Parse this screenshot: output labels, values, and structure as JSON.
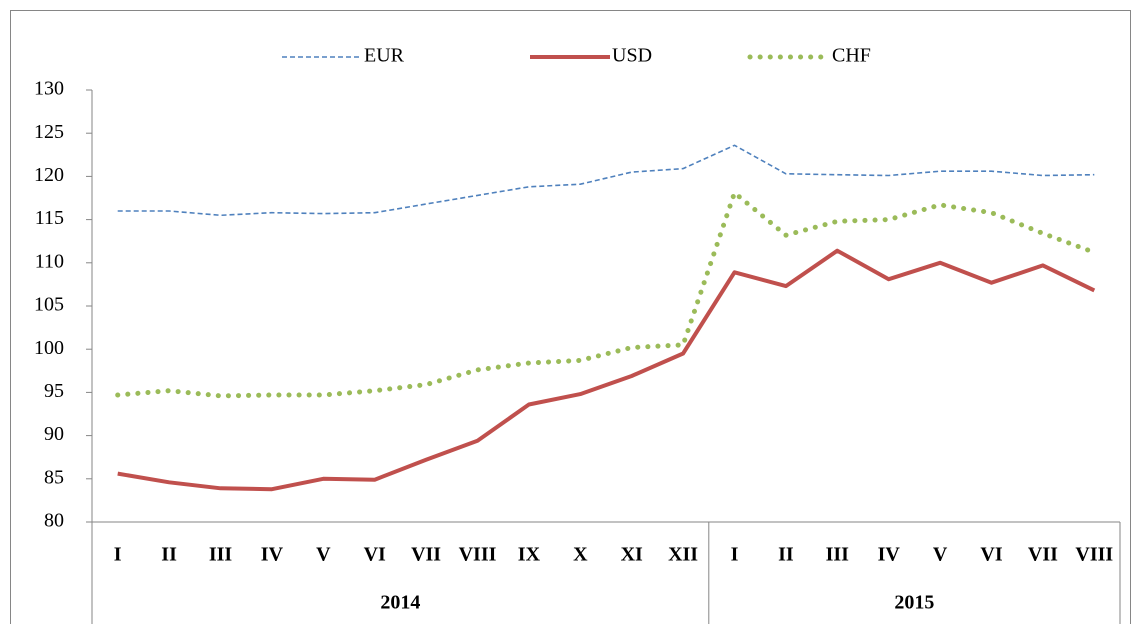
{
  "chart_data": {
    "type": "line",
    "groups": [
      {
        "label": "2014",
        "categories": [
          "I",
          "II",
          "III",
          "IV",
          "V",
          "VI",
          "VII",
          "VIII",
          "IX",
          "X",
          "XI",
          "XII"
        ]
      },
      {
        "label": "2015",
        "categories": [
          "I",
          "II",
          "III",
          "IV",
          "V",
          "VI",
          "VII",
          "VIII"
        ]
      }
    ],
    "series": [
      {
        "name": "EUR",
        "color": "#4f81bd",
        "style": "dashed",
        "values": [
          116,
          116,
          115.5,
          115.8,
          115.7,
          115.8,
          116.8,
          117.8,
          118.8,
          119.1,
          120.5,
          120.9,
          123.6,
          120.3,
          120.2,
          120.1,
          120.6,
          120.6,
          120.1,
          120.2
        ]
      },
      {
        "name": "USD",
        "color": "#c0504d",
        "style": "solid",
        "values": [
          85.6,
          84.6,
          83.9,
          83.8,
          85.0,
          84.9,
          87.2,
          89.4,
          93.6,
          94.8,
          96.9,
          99.5,
          108.9,
          107.3,
          111.4,
          108.1,
          110.0,
          107.7,
          109.7,
          106.8
        ]
      },
      {
        "name": "CHF",
        "color": "#9bbb59",
        "style": "dotted",
        "values": [
          94.7,
          95.2,
          94.6,
          94.7,
          94.7,
          95.2,
          95.9,
          97.6,
          98.4,
          98.7,
          100.2,
          100.5,
          118.1,
          113.2,
          114.8,
          115.0,
          116.7,
          115.8,
          113.4,
          111.2
        ]
      }
    ],
    "ylim": [
      80,
      130
    ],
    "yticks": [
      80,
      85,
      90,
      95,
      100,
      105,
      110,
      115,
      120,
      125,
      130
    ],
    "grid": false,
    "legend": "top"
  }
}
